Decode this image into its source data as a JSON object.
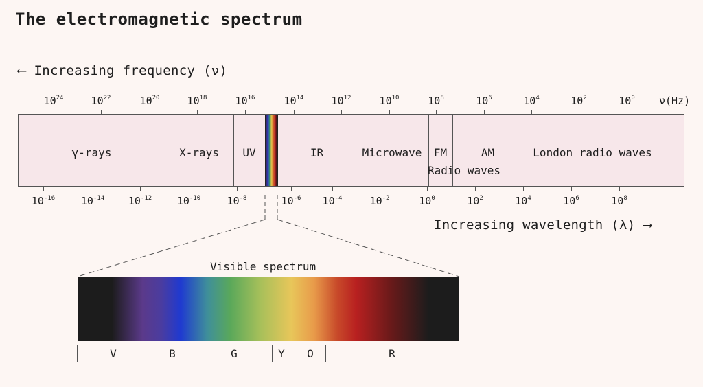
{
  "title": "The electromagnetic spectrum",
  "frequency_label": "⟵ Increasing frequency (ν)",
  "wavelength_label": "Increasing wavelength (λ) ⟶",
  "frequency_unit": "ν(Hz)",
  "frequency_ticks": [
    {
      "base": "10",
      "exp": "24"
    },
    {
      "base": "10",
      "exp": "22"
    },
    {
      "base": "10",
      "exp": "20"
    },
    {
      "base": "10",
      "exp": "18"
    },
    {
      "base": "10",
      "exp": "16"
    },
    {
      "base": "10",
      "exp": "14"
    },
    {
      "base": "10",
      "exp": "12"
    },
    {
      "base": "10",
      "exp": "10"
    },
    {
      "base": "10",
      "exp": "8"
    },
    {
      "base": "10",
      "exp": "6"
    },
    {
      "base": "10",
      "exp": "4"
    },
    {
      "base": "10",
      "exp": "2"
    },
    {
      "base": "10",
      "exp": "0"
    }
  ],
  "wavelength_ticks": [
    {
      "base": "10",
      "exp": "-16"
    },
    {
      "base": "10",
      "exp": "-14"
    },
    {
      "base": "10",
      "exp": "-12"
    },
    {
      "base": "10",
      "exp": "-10"
    },
    {
      "base": "10",
      "exp": "-8"
    },
    {
      "base": "10",
      "exp": "-6"
    },
    {
      "base": "10",
      "exp": "-4"
    },
    {
      "base": "10",
      "exp": "-2"
    },
    {
      "base": "10",
      "exp": "0"
    },
    {
      "base": "10",
      "exp": "2"
    },
    {
      "base": "10",
      "exp": "4"
    },
    {
      "base": "10",
      "exp": "6"
    },
    {
      "base": "10",
      "exp": "8"
    }
  ],
  "regions": {
    "gamma": "γ-rays",
    "xray": "X-rays",
    "uv": "UV",
    "ir": "IR",
    "microwave": "Microwave",
    "fm": "FM",
    "am": "AM",
    "radio": "Radio waves",
    "london": "London radio waves"
  },
  "visible": {
    "title": "Visible spectrum",
    "bands": [
      "V",
      "B",
      "G",
      "Y",
      "O",
      "R"
    ]
  }
}
